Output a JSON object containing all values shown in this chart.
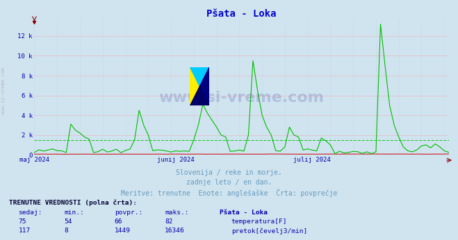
{
  "title": "Pšata - Loka",
  "title_color": "#0000cc",
  "bg_color": "#d0e4f0",
  "plot_bg_color": "#d0e4f0",
  "grid_color_h": "#ff8888",
  "grid_color_v": "#aaaacc",
  "x_labels": [
    "maj 2024",
    "junij 2024",
    "julij 2024"
  ],
  "x_label_color": "#0000aa",
  "y_label_color": "#0000aa",
  "y_ticks": [
    0,
    2000,
    4000,
    6000,
    8000,
    10000,
    12000
  ],
  "y_tick_labels": [
    "0",
    "2 k",
    "4 k",
    "6 k",
    "8 k",
    "10 k",
    "12 k"
  ],
  "ylim": [
    0,
    13700
  ],
  "temp_color": "#cc0000",
  "flow_color": "#00bb00",
  "avg_flow": 1449,
  "watermark_text": "www.si-vreme.com",
  "sub_text1": "Slovenija / reke in morje.",
  "sub_text2": "zadnje leto / en dan.",
  "sub_text3": "Meritve: trenutne  Enote: anglešaške  Črta: povprečje",
  "sub_text_color": "#6699bb",
  "table_header": "TRENUTNE VREDNOSTI (polna črta):",
  "col_headers": [
    "sedaj:",
    "min.:",
    "povpr.:",
    "maks.:",
    "Pšata - Loka"
  ],
  "row1_vals": [
    "75",
    "54",
    "66",
    "82"
  ],
  "row1_label": "temperatura[F]",
  "row1_color": "#cc0000",
  "row2_vals": [
    "117",
    "8",
    "1449",
    "16346"
  ],
  "row2_label": "pretok[čevelj3/min]",
  "row2_color": "#00bb00",
  "side_text": "www.si-vreme.com",
  "side_text_color": "#aaaaaa"
}
